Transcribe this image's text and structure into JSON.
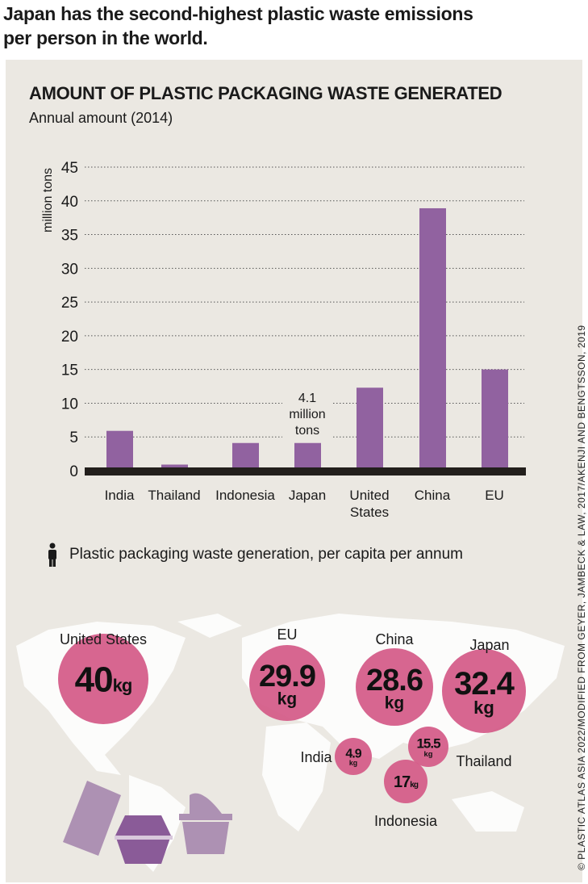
{
  "headline": "Japan has the second-highest plastic waste emissions per person in the world.",
  "chart_data": [
    {
      "type": "bar",
      "title": "AMOUNT OF PLASTIC PACKAGING WASTE GENERATED",
      "subtitle": "Annual amount (2014)",
      "ylabel": "million tons",
      "xlabel": "",
      "categories": [
        "India",
        "Thailand",
        "Indonesia",
        "Japan",
        "United States",
        "China",
        "EU"
      ],
      "values": [
        5.9,
        0.9,
        4.1,
        4.1,
        12.3,
        38.9,
        15.0
      ],
      "ylim": [
        0,
        45
      ],
      "yticks": [
        0,
        5,
        10,
        15,
        20,
        25,
        30,
        35,
        40,
        45
      ],
      "grid": true,
      "bar_color": "#9162a0",
      "annotation": {
        "category": "Japan",
        "lines": [
          "4.1",
          "million",
          "tons"
        ]
      }
    },
    {
      "type": "bubble-map",
      "legend": "Plastic packaging waste generation, per capita per annum",
      "unit": "kg",
      "bubble_color": "#d45a88",
      "points": [
        {
          "label": "United States",
          "value": "40"
        },
        {
          "label": "EU",
          "value": "29.9"
        },
        {
          "label": "China",
          "value": "28.6"
        },
        {
          "label": "Japan",
          "value": "32.4"
        },
        {
          "label": "India",
          "value": "4.9"
        },
        {
          "label": "Thailand",
          "value": "15.5"
        },
        {
          "label": "Indonesia",
          "value": "17"
        }
      ]
    }
  ],
  "credit": "© PLASTIC ATLAS ASIA 2022/MODIFIED FROM GEYER, JAMBECK & LAW, 2017/AKENJI AND BENGTSSON, 2019"
}
